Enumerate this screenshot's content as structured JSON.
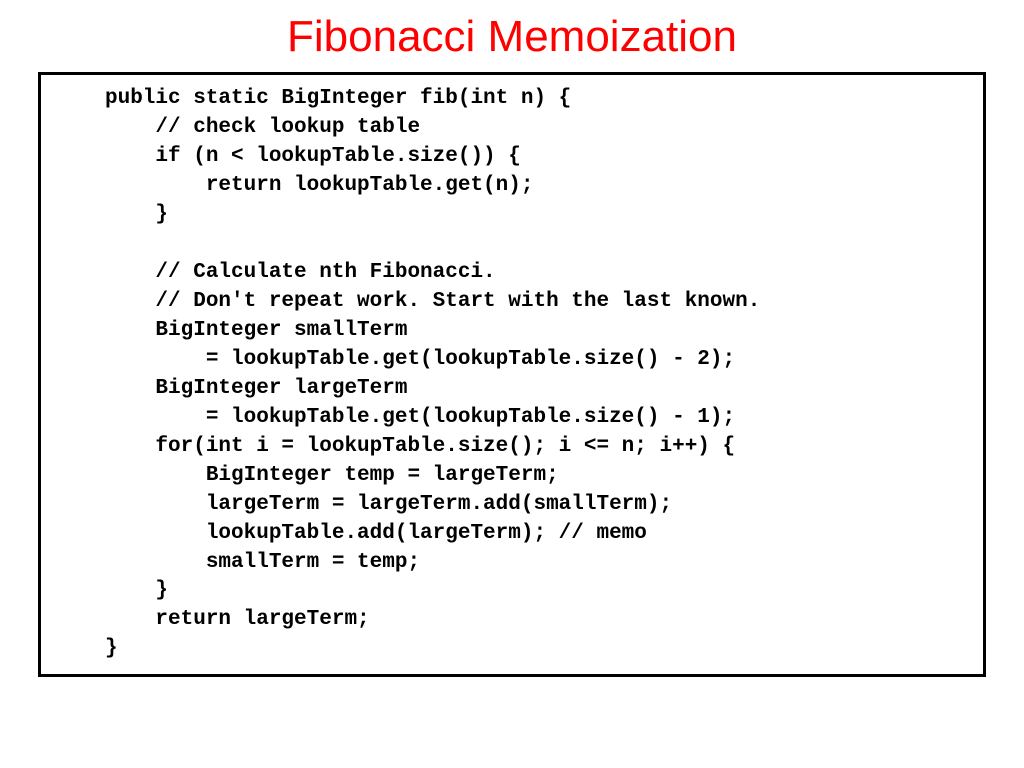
{
  "slide": {
    "title": "Fibonacci Memoization",
    "title_color": "#ff0000",
    "title_fontsize": 44,
    "background_color": "#ffffff",
    "border_color": "#000000",
    "border_width": 3,
    "code": {
      "font_family": "Courier New",
      "font_weight": "bold",
      "font_size": 21,
      "text_color": "#000000",
      "lines": [
        "public static BigInteger fib(int n) {",
        "    // check lookup table",
        "    if (n < lookupTable.size()) {",
        "        return lookupTable.get(n);",
        "    }",
        "",
        "    // Calculate nth Fibonacci.",
        "    // Don't repeat work. Start with the last known.",
        "    BigInteger smallTerm",
        "        = lookupTable.get(lookupTable.size() - 2);",
        "    BigInteger largeTerm",
        "        = lookupTable.get(lookupTable.size() - 1);",
        "    for(int i = lookupTable.size(); i <= n; i++) {",
        "        BigInteger temp = largeTerm;",
        "        largeTerm = largeTerm.add(smallTerm);",
        "        lookupTable.add(largeTerm); // memo",
        "        smallTerm = temp;",
        "    }",
        "    return largeTerm;",
        "}"
      ]
    }
  }
}
